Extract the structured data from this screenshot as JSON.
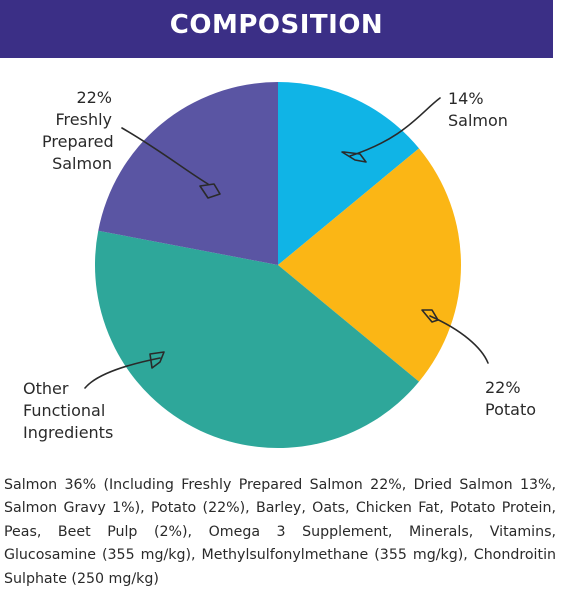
{
  "header": {
    "title": "COMPOSITION"
  },
  "chart_data": {
    "type": "pie",
    "title": "COMPOSITION",
    "slices": [
      {
        "label_lines": [
          "14%",
          "Salmon"
        ],
        "value": 14,
        "color": "#10b4e6"
      },
      {
        "label_lines": [
          "22%",
          "Potato"
        ],
        "value": 22,
        "color": "#fbb615"
      },
      {
        "label_lines": [
          "Other",
          "Functional",
          "Ingredients"
        ],
        "value": 42,
        "color": "#2ea79a"
      },
      {
        "label_lines": [
          "22%",
          "Freshly",
          "Prepared",
          "Salmon"
        ],
        "value": 22,
        "color": "#5a55a3"
      }
    ]
  },
  "description": "Salmon 36% (Including Freshly Prepared Salmon 22%, Dried Salmon 13%, Salmon Gravy 1%), Potato (22%), Barley, Oats, Chicken Fat, Potato Protein, Peas, Beet Pulp (2%), Omega 3 Supplement, Minerals, Vitamins, Glucosamine (355 mg/kg), Methylsulfonylmethane (355 mg/kg), Chondroitin Sulphate (250 mg/kg)"
}
